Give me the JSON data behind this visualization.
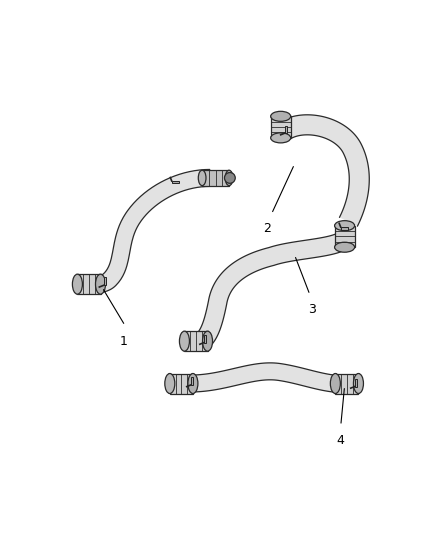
{
  "background_color": "#ffffff",
  "hose_fill": "#e8e8e8",
  "hose_edge": "#2a2a2a",
  "hose_inner": "#c0c0c0",
  "connector_fill": "#d0d0d0",
  "connector_edge": "#1a1a1a",
  "fig_width": 4.38,
  "fig_height": 5.33,
  "dpi": 100
}
